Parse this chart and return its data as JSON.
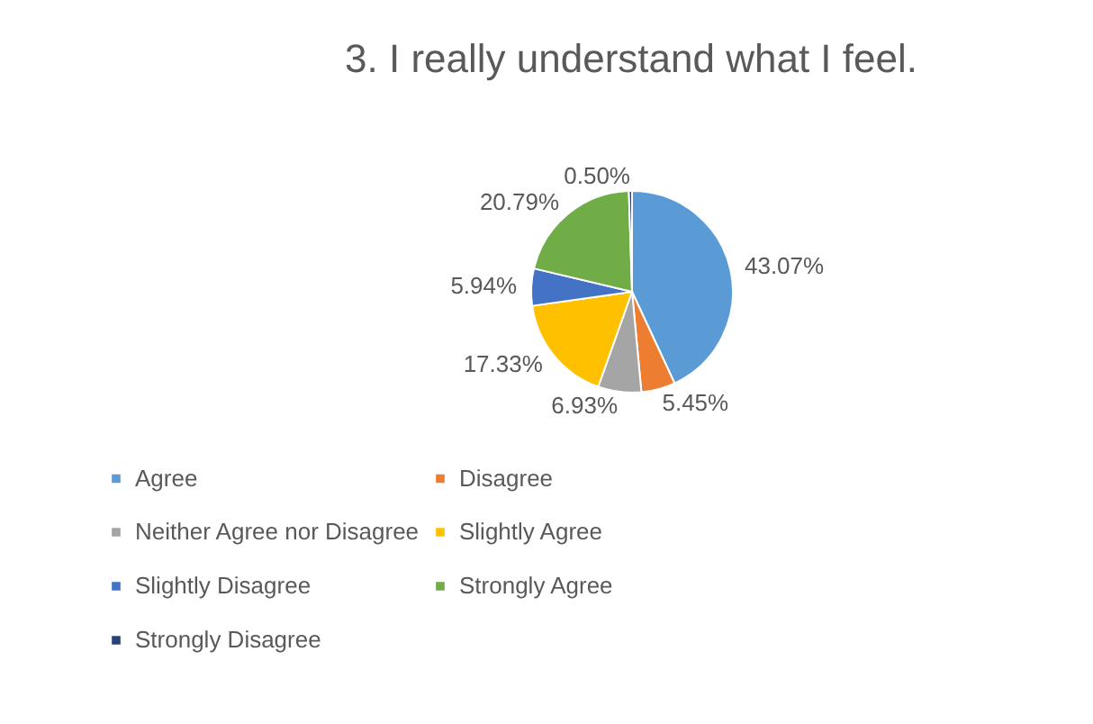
{
  "chart_data": {
    "type": "pie",
    "title": "3. I really understand what I feel.",
    "categories": [
      "Agree",
      "Disagree",
      "Neither Agree nor Disagree",
      "Slightly Agree",
      "Slightly Disagree",
      "Strongly Agree",
      "Strongly Disagree"
    ],
    "values": [
      43.07,
      5.45,
      6.93,
      17.33,
      5.94,
      20.79,
      0.5
    ],
    "colors": [
      "#5b9bd5",
      "#ed7d31",
      "#a5a5a5",
      "#ffc000",
      "#4472c4",
      "#70ad47",
      "#264478"
    ],
    "value_labels": [
      "43.07%",
      "5.45%",
      "6.93%",
      "17.33%",
      "5.94%",
      "20.79%",
      "0.50%"
    ],
    "legend": "bottom"
  }
}
